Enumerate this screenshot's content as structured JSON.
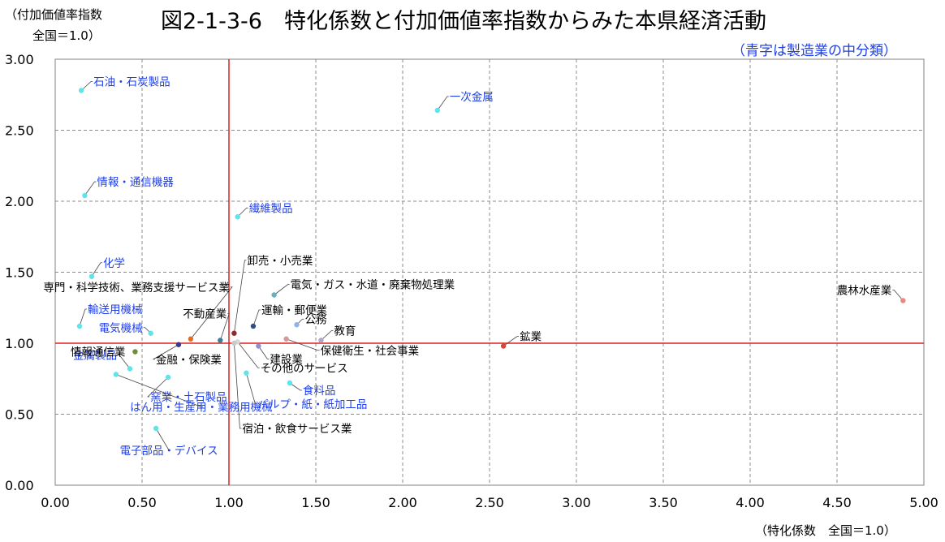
{
  "title": "図2-1-3-6　特化係数と付加価値率指数からみた本県経済活動",
  "ylabel_line1": "（付加価値率指数",
  "ylabel_line2": "全国＝1.0）",
  "note": "（青字は製造業の中分類）",
  "xlabel": "（特化係数　全国＝1.0）",
  "colors": {
    "manufacturing_label": "#1f3fe8",
    "other_label": "#000000",
    "reference_line": "#e02020",
    "grid": "#8c8c8c",
    "manufacturing_point": "#5ee4ea"
  },
  "chart_data": {
    "type": "scatter",
    "xlim": [
      0,
      5
    ],
    "ylim": [
      0,
      3
    ],
    "xticks": [
      "0.00",
      "0.50",
      "1.00",
      "1.50",
      "2.00",
      "2.50",
      "3.00",
      "3.50",
      "4.00",
      "4.50",
      "5.00"
    ],
    "yticks": [
      "0.00",
      "0.50",
      "1.00",
      "1.50",
      "2.00",
      "2.50",
      "3.00"
    ],
    "grid": true,
    "reference_lines": {
      "x": 1.0,
      "y": 1.0
    },
    "points": [
      {
        "label": "石油・石炭製品",
        "x": 0.15,
        "y": 2.78,
        "manufacturing": true,
        "color": "#5ee4ea"
      },
      {
        "label": "一次金属",
        "x": 2.2,
        "y": 2.64,
        "manufacturing": true,
        "color": "#5ee4ea"
      },
      {
        "label": "情報・通信機器",
        "x": 0.17,
        "y": 2.04,
        "manufacturing": true,
        "color": "#5ee4ea"
      },
      {
        "label": "繊維製品",
        "x": 1.05,
        "y": 1.89,
        "manufacturing": true,
        "color": "#5ee4ea"
      },
      {
        "label": "化学",
        "x": 0.21,
        "y": 1.47,
        "manufacturing": true,
        "color": "#5ee4ea"
      },
      {
        "label": "輸送用機械",
        "x": 0.14,
        "y": 1.12,
        "manufacturing": true,
        "color": "#5ee4ea"
      },
      {
        "label": "電気機械",
        "x": 0.55,
        "y": 1.07,
        "manufacturing": true,
        "color": "#5ee4ea"
      },
      {
        "label": "金属製品",
        "x": 0.43,
        "y": 0.82,
        "manufacturing": true,
        "color": "#5ee4ea"
      },
      {
        "label": "はん用・生産用・業務用機械",
        "x": 0.35,
        "y": 0.78,
        "manufacturing": true,
        "color": "#5ee4ea"
      },
      {
        "label": "窯業・土石製品",
        "x": 0.65,
        "y": 0.76,
        "manufacturing": true,
        "color": "#5ee4ea"
      },
      {
        "label": "電子部品・デバイス",
        "x": 0.58,
        "y": 0.4,
        "manufacturing": true,
        "color": "#5ee4ea"
      },
      {
        "label": "食料品",
        "x": 1.35,
        "y": 0.72,
        "manufacturing": true,
        "color": "#5ee4ea"
      },
      {
        "label": "パルプ・紙・紙加工品",
        "x": 1.1,
        "y": 0.79,
        "manufacturing": true,
        "color": "#5ee4ea"
      },
      {
        "label": "卸売・小売業",
        "x": 1.03,
        "y": 1.07,
        "manufacturing": false,
        "color": "#8b2c2c"
      },
      {
        "label": "専門・科学技術、業務支援サービス業",
        "x": 0.78,
        "y": 1.03,
        "manufacturing": false,
        "color": "#e07020"
      },
      {
        "label": "不動産業",
        "x": 0.95,
        "y": 1.02,
        "manufacturing": false,
        "color": "#3d7f9a"
      },
      {
        "label": "電気・ガス・水道・廃棄物処理業",
        "x": 1.26,
        "y": 1.34,
        "manufacturing": false,
        "color": "#6aaebf"
      },
      {
        "label": "運輸・郵便業",
        "x": 1.14,
        "y": 1.12,
        "manufacturing": false,
        "color": "#2f4f7f"
      },
      {
        "label": "公務",
        "x": 1.39,
        "y": 1.13,
        "manufacturing": false,
        "color": "#8fb3e6"
      },
      {
        "label": "教育",
        "x": 1.53,
        "y": 1.02,
        "manufacturing": false,
        "color": "#b0a7c8"
      },
      {
        "label": "保健衛生・社会事業",
        "x": 1.33,
        "y": 1.03,
        "manufacturing": false,
        "color": "#d49a9a"
      },
      {
        "label": "建設業",
        "x": 1.17,
        "y": 0.98,
        "manufacturing": false,
        "color": "#9090cc"
      },
      {
        "label": "情報通信業",
        "x": 0.46,
        "y": 0.94,
        "manufacturing": false,
        "color": "#6e8e3a"
      },
      {
        "label": "金融・保険業",
        "x": 0.71,
        "y": 0.99,
        "manufacturing": false,
        "color": "#3a3a8a"
      },
      {
        "label": "その他のサービス",
        "x": 1.05,
        "y": 1.01,
        "manufacturing": false,
        "color": "#d8d8d8"
      },
      {
        "label": "宿泊・飲食サービス業",
        "x": 1.03,
        "y": 1.0,
        "manufacturing": false,
        "color": "#c8c8c8"
      },
      {
        "label": "鉱業",
        "x": 2.58,
        "y": 0.98,
        "manufacturing": false,
        "color": "#d44a3a"
      },
      {
        "label": "農林水産業",
        "x": 4.88,
        "y": 1.3,
        "manufacturing": false,
        "color": "#e88a80"
      }
    ]
  }
}
